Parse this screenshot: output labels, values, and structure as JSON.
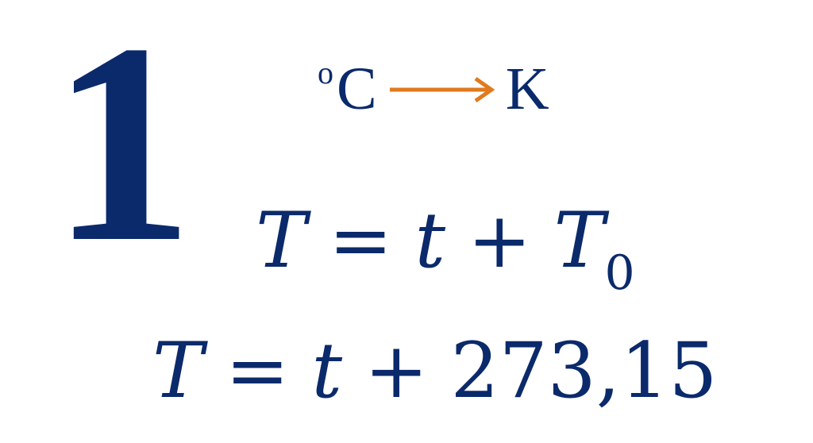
{
  "big_number": "1",
  "conversion": {
    "from_deg": "o",
    "from_unit": "C",
    "to_unit": "K",
    "arrow_color": "#e07a1f"
  },
  "equation1": {
    "lhs": "T",
    "equals": "=",
    "t": "t",
    "plus": "+",
    "rhs_var": "T",
    "rhs_sub": "0"
  },
  "equation2": {
    "lhs": "T",
    "equals": "=",
    "t": "t",
    "plus": "+",
    "constant": "273,15"
  },
  "text_color": "#0b2a6b"
}
